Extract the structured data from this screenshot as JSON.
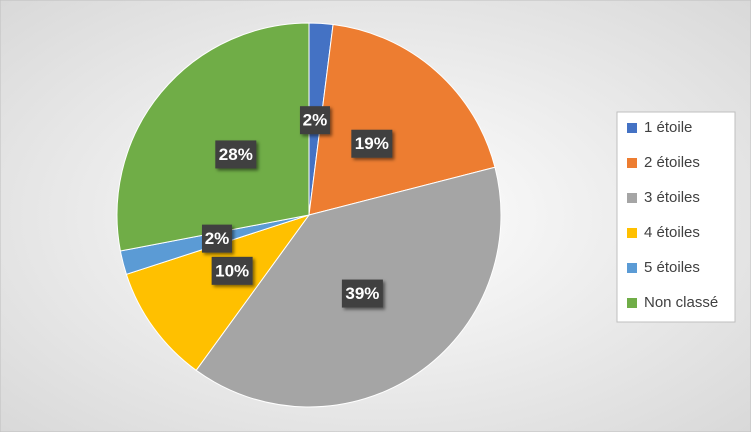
{
  "chart_data": {
    "type": "pie",
    "categories": [
      "1 étoile",
      "2 étoiles",
      "3 étoiles",
      "4 étoiles",
      "5 étoiles",
      "Non classé"
    ],
    "values": [
      2,
      19,
      39,
      10,
      2,
      28
    ],
    "value_labels": [
      "2%",
      "19%",
      "39%",
      "10%",
      "2%",
      "28%"
    ],
    "colors": [
      "#4472c4",
      "#ed7d31",
      "#a5a5a5",
      "#ffc000",
      "#5b9bd5",
      "#70ad47"
    ],
    "legend": "right"
  }
}
